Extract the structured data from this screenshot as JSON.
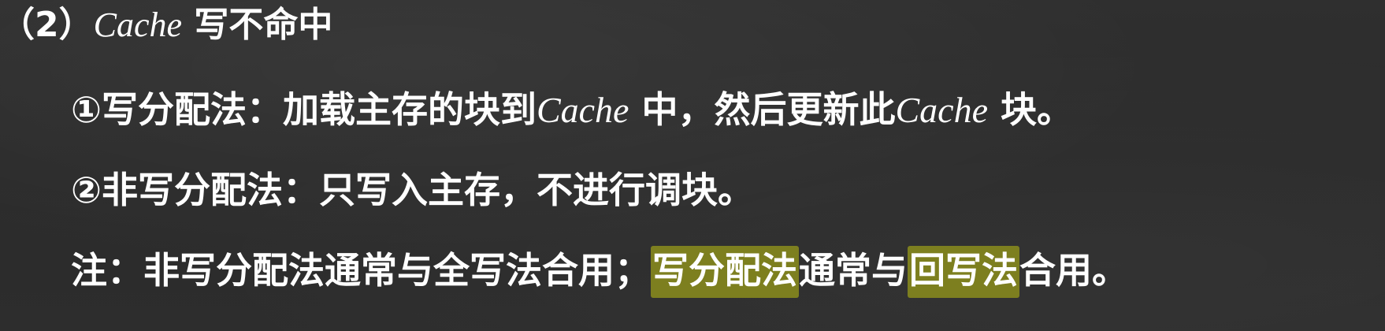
{
  "heading": {
    "prefix": "（2）",
    "term": "Cache",
    "suffix": " 写不命中"
  },
  "item1": {
    "text_a": "①写分配法：加载主存的块到",
    "term_a": "Cache",
    "text_b": " 中，然后更新此",
    "term_b": "Cache",
    "text_c": " 块。"
  },
  "item2": {
    "text": "②非写分配法：只写入主存，不进行调块。"
  },
  "note": {
    "text_a": "注：非写分配法通常与全写法合用；",
    "highlight_a": "写分配法",
    "text_b": "通常与",
    "highlight_b": "回写法",
    "text_c": "合用。"
  },
  "colors": {
    "background": "#2e2e2e",
    "text": "#ffffff",
    "highlight": "#7d7f1f"
  }
}
